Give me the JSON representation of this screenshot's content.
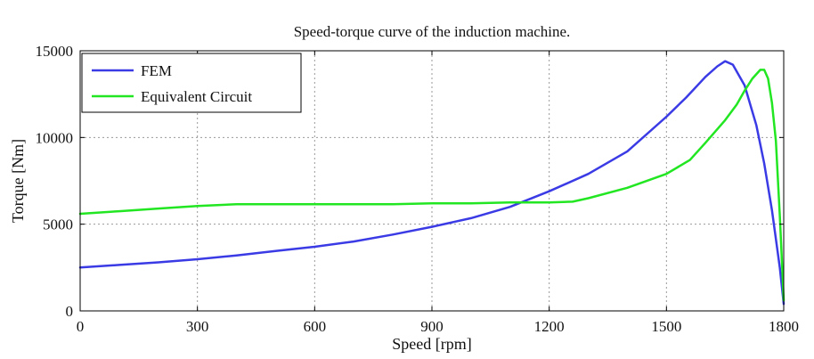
{
  "chart_data": {
    "type": "line",
    "title": "Speed-torque curve of the induction machine.",
    "xlabel": "Speed [rpm]",
    "ylabel": "Torque [Nm]",
    "xlim": [
      0,
      1800
    ],
    "ylim": [
      0,
      15000
    ],
    "xticks": [
      0,
      300,
      600,
      900,
      1200,
      1500,
      1800
    ],
    "yticks": [
      0,
      5000,
      10000,
      15000
    ],
    "xtick_labels": [
      "0",
      "300",
      "600",
      "900",
      "1200",
      "1500",
      "1800"
    ],
    "ytick_labels": [
      "0",
      "5000",
      "10000",
      "15000"
    ],
    "grid": true,
    "legend_position": "top-left",
    "series": [
      {
        "name": "FEM",
        "color": "#3b3be6",
        "x": [
          0,
          100,
          200,
          300,
          400,
          500,
          600,
          700,
          800,
          900,
          1000,
          1100,
          1200,
          1300,
          1400,
          1500,
          1550,
          1600,
          1630,
          1650,
          1670,
          1700,
          1730,
          1750,
          1770,
          1790,
          1800
        ],
        "y": [
          2500,
          2650,
          2800,
          2980,
          3200,
          3450,
          3700,
          4000,
          4400,
          4850,
          5350,
          6000,
          6900,
          7900,
          9200,
          11200,
          12300,
          13500,
          14100,
          14400,
          14200,
          13000,
          10700,
          8500,
          5800,
          2500,
          400
        ]
      },
      {
        "name": "Equivalent Circuit",
        "color": "#22e622",
        "x": [
          0,
          100,
          200,
          300,
          400,
          500,
          600,
          700,
          800,
          900,
          1000,
          1100,
          1200,
          1260,
          1300,
          1400,
          1500,
          1560,
          1600,
          1650,
          1680,
          1700,
          1720,
          1740,
          1750,
          1760,
          1770,
          1780,
          1790,
          1800
        ],
        "y": [
          5600,
          5750,
          5900,
          6050,
          6150,
          6150,
          6150,
          6150,
          6150,
          6200,
          6200,
          6250,
          6250,
          6300,
          6500,
          7100,
          7900,
          8700,
          9700,
          11000,
          11900,
          12700,
          13400,
          13900,
          13900,
          13400,
          12000,
          9800,
          5500,
          600
        ]
      }
    ]
  }
}
